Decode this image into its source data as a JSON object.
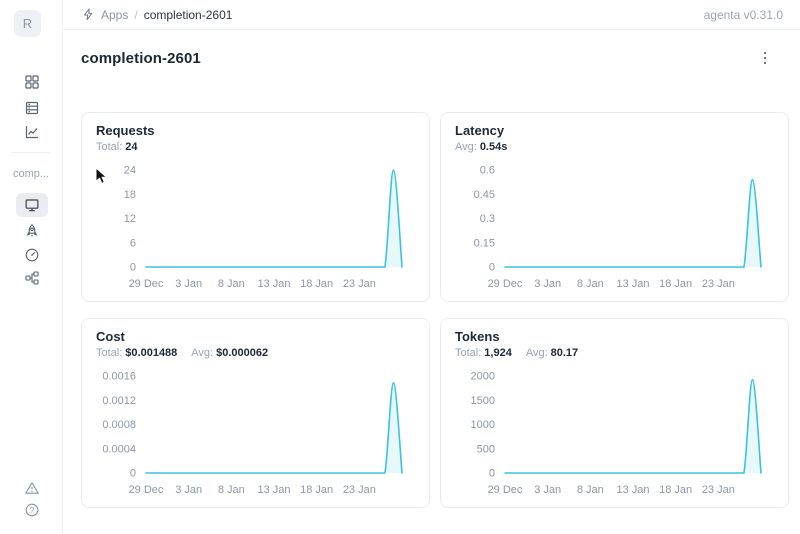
{
  "theme": {
    "line_color": "#3BC2DF",
    "area_fill": "rgba(59,194,223,0.12)",
    "title_text": "#1E2936",
    "muted_text": "#98A2B3"
  },
  "topbar": {
    "logo_letter": "R",
    "breadcrumb": {
      "app_section": "Apps",
      "separator": "/",
      "current": "completion-2601"
    },
    "version": "agenta v0.31.0"
  },
  "sidebar": {
    "workspace_label": "comp...",
    "nav_icons": [
      "apps-grid",
      "test-sets-list",
      "observability-chart"
    ],
    "app_nav_icons": [
      "overview-monitor",
      "playground-rocket",
      "evaluations-gauge",
      "traces-tree"
    ],
    "footer_icons": [
      "alert-triangle",
      "help-question"
    ]
  },
  "page": {
    "title": "completion-2601"
  },
  "chart_data": [
    {
      "type": "area",
      "title": "Requests",
      "stats": [
        {
          "label": "Total:",
          "value": "24"
        }
      ],
      "x_tick_labels": [
        "29 Dec",
        "3 Jan",
        "8 Jan",
        "13 Jan",
        "18 Jan",
        "23 Jan"
      ],
      "x_tick_days": [
        0,
        5,
        10,
        15,
        20,
        25
      ],
      "days_total": 30,
      "y_tick_labels": [
        "0",
        "6",
        "12",
        "18",
        "24"
      ],
      "ylim": [
        0,
        24
      ],
      "values": [
        0,
        0,
        0,
        0,
        0,
        0,
        0,
        0,
        0,
        0,
        0,
        0,
        0,
        0,
        0,
        0,
        0,
        0,
        0,
        0,
        0,
        0,
        0,
        0,
        0,
        0,
        0,
        0,
        0,
        24,
        0
      ]
    },
    {
      "type": "area",
      "title": "Latency",
      "stats": [
        {
          "label": "Avg:",
          "value": "0.54s"
        }
      ],
      "x_tick_labels": [
        "29 Dec",
        "3 Jan",
        "8 Jan",
        "13 Jan",
        "18 Jan",
        "23 Jan"
      ],
      "x_tick_days": [
        0,
        5,
        10,
        15,
        20,
        25
      ],
      "days_total": 30,
      "y_tick_labels": [
        "0",
        "0.15",
        "0.3",
        "0.45",
        "0.6"
      ],
      "ylim": [
        0,
        0.6
      ],
      "values": [
        0,
        0,
        0,
        0,
        0,
        0,
        0,
        0,
        0,
        0,
        0,
        0,
        0,
        0,
        0,
        0,
        0,
        0,
        0,
        0,
        0,
        0,
        0,
        0,
        0,
        0,
        0,
        0,
        0,
        0.54,
        0
      ]
    },
    {
      "type": "area",
      "title": "Cost",
      "stats": [
        {
          "label": "Total:",
          "value": "$0.001488"
        },
        {
          "label": "Avg:",
          "value": "$0.000062"
        }
      ],
      "x_tick_labels": [
        "29 Dec",
        "3 Jan",
        "8 Jan",
        "13 Jan",
        "18 Jan",
        "23 Jan"
      ],
      "x_tick_days": [
        0,
        5,
        10,
        15,
        20,
        25
      ],
      "days_total": 30,
      "y_tick_labels": [
        "0",
        "0.0004",
        "0.0008",
        "0.0012",
        "0.0016"
      ],
      "ylim": [
        0,
        0.0016
      ],
      "values": [
        0,
        0,
        0,
        0,
        0,
        0,
        0,
        0,
        0,
        0,
        0,
        0,
        0,
        0,
        0,
        0,
        0,
        0,
        0,
        0,
        0,
        0,
        0,
        0,
        0,
        0,
        0,
        0,
        0,
        0.001488,
        0
      ]
    },
    {
      "type": "area",
      "title": "Tokens",
      "stats": [
        {
          "label": "Total:",
          "value": "1,924"
        },
        {
          "label": "Avg:",
          "value": "80.17"
        }
      ],
      "x_tick_labels": [
        "29 Dec",
        "3 Jan",
        "8 Jan",
        "13 Jan",
        "18 Jan",
        "23 Jan"
      ],
      "x_tick_days": [
        0,
        5,
        10,
        15,
        20,
        25
      ],
      "days_total": 30,
      "y_tick_labels": [
        "0",
        "500",
        "1000",
        "1500",
        "2000"
      ],
      "ylim": [
        0,
        2000
      ],
      "values": [
        0,
        0,
        0,
        0,
        0,
        0,
        0,
        0,
        0,
        0,
        0,
        0,
        0,
        0,
        0,
        0,
        0,
        0,
        0,
        0,
        0,
        0,
        0,
        0,
        0,
        0,
        0,
        0,
        0,
        1924,
        0
      ]
    }
  ]
}
